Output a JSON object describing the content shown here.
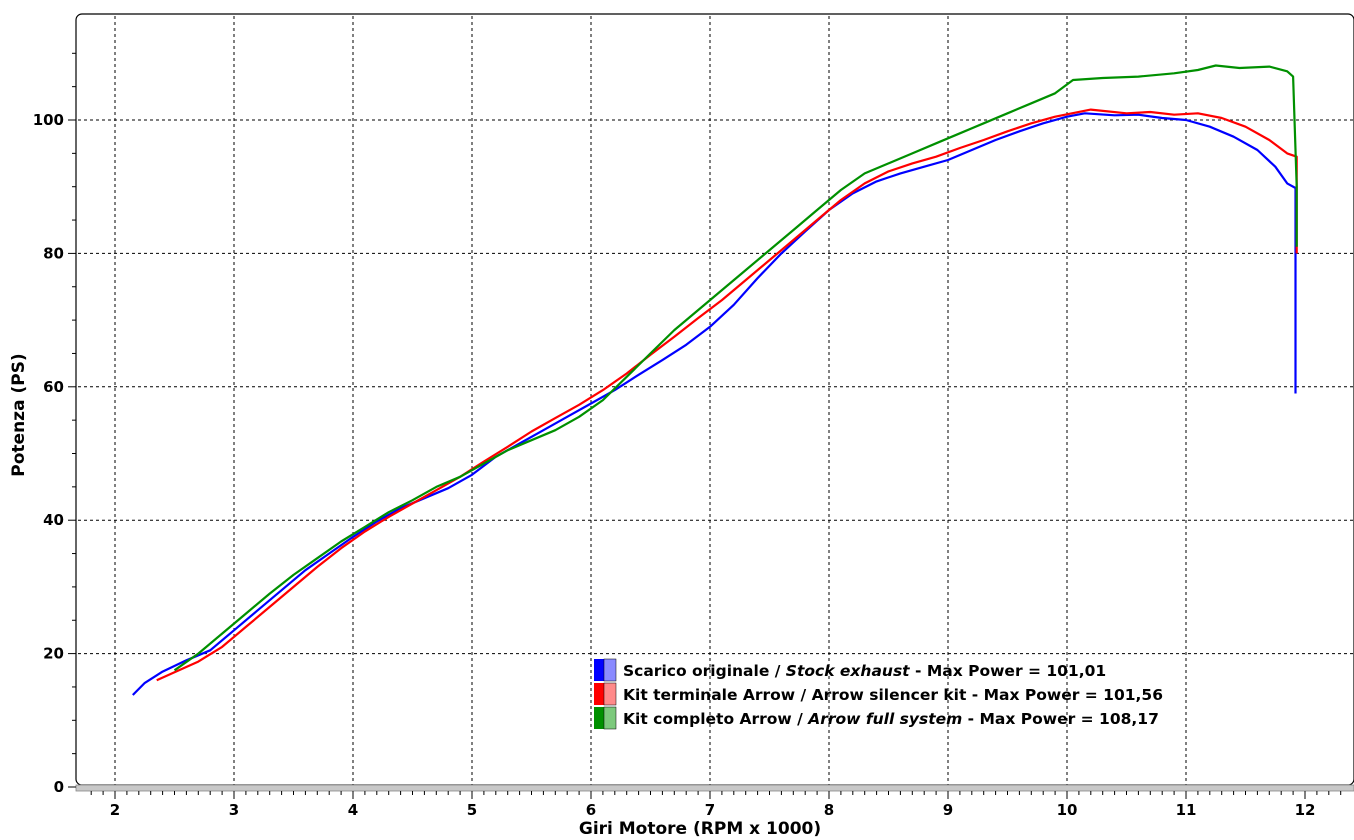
{
  "chart_data": {
    "type": "line",
    "xlabel": "Giri Motore (RPM x 1000)",
    "ylabel": "Potenza (PS)",
    "xlim": [
      1.7,
      12.3
    ],
    "ylim": [
      0,
      115
    ],
    "x_ticks": [
      2,
      3,
      4,
      5,
      6,
      7,
      8,
      9,
      10,
      11,
      12
    ],
    "y_ticks": [
      0,
      20,
      40,
      60,
      80,
      100
    ],
    "grid": true,
    "legend_position": "bottom-right",
    "series": [
      {
        "name_parts": [
          "Scarico originale / ",
          "Stock exhaust",
          " - Max Power = 101,01"
        ],
        "color": "#0000ff",
        "points": [
          [
            2.15,
            13.8
          ],
          [
            2.25,
            15.6
          ],
          [
            2.4,
            17.3
          ],
          [
            2.6,
            19.0
          ],
          [
            2.8,
            20.5
          ],
          [
            3.0,
            23.5
          ],
          [
            3.2,
            26.5
          ],
          [
            3.4,
            29.5
          ],
          [
            3.6,
            32.5
          ],
          [
            3.8,
            35.0
          ],
          [
            4.0,
            37.5
          ],
          [
            4.2,
            39.8
          ],
          [
            4.4,
            41.8
          ],
          [
            4.6,
            43.3
          ],
          [
            4.8,
            44.8
          ],
          [
            5.0,
            46.8
          ],
          [
            5.2,
            49.5
          ],
          [
            5.4,
            51.5
          ],
          [
            5.6,
            53.5
          ],
          [
            5.8,
            55.5
          ],
          [
            6.0,
            57.5
          ],
          [
            6.2,
            59.5
          ],
          [
            6.4,
            61.8
          ],
          [
            6.6,
            64.0
          ],
          [
            6.8,
            66.3
          ],
          [
            7.0,
            69.0
          ],
          [
            7.2,
            72.3
          ],
          [
            7.4,
            76.3
          ],
          [
            7.6,
            80.0
          ],
          [
            7.8,
            83.3
          ],
          [
            8.0,
            86.5
          ],
          [
            8.2,
            89.0
          ],
          [
            8.4,
            90.8
          ],
          [
            8.6,
            92.0
          ],
          [
            8.8,
            93.0
          ],
          [
            9.0,
            94.0
          ],
          [
            9.2,
            95.5
          ],
          [
            9.4,
            97.0
          ],
          [
            9.6,
            98.3
          ],
          [
            9.8,
            99.5
          ],
          [
            10.0,
            100.5
          ],
          [
            10.15,
            101.01
          ],
          [
            10.4,
            100.7
          ],
          [
            10.6,
            100.8
          ],
          [
            10.8,
            100.3
          ],
          [
            11.0,
            100.0
          ],
          [
            11.2,
            99.0
          ],
          [
            11.4,
            97.5
          ],
          [
            11.6,
            95.5
          ],
          [
            11.75,
            93.0
          ],
          [
            11.85,
            90.5
          ],
          [
            11.92,
            89.8
          ],
          [
            11.92,
            59.0
          ]
        ]
      },
      {
        "name_parts": [
          "Kit terminale Arrow / Arrow silencer kit - Max Power = 101,56"
        ],
        "color": "#ff0000",
        "points": [
          [
            2.35,
            16.0
          ],
          [
            2.5,
            17.2
          ],
          [
            2.7,
            18.8
          ],
          [
            2.9,
            21.0
          ],
          [
            3.1,
            24.0
          ],
          [
            3.3,
            27.0
          ],
          [
            3.5,
            30.0
          ],
          [
            3.7,
            33.0
          ],
          [
            3.9,
            35.8
          ],
          [
            4.1,
            38.3
          ],
          [
            4.3,
            40.5
          ],
          [
            4.5,
            42.5
          ],
          [
            4.7,
            44.5
          ],
          [
            4.9,
            46.5
          ],
          [
            5.1,
            48.8
          ],
          [
            5.3,
            51.0
          ],
          [
            5.5,
            53.3
          ],
          [
            5.7,
            55.3
          ],
          [
            5.9,
            57.3
          ],
          [
            6.1,
            59.5
          ],
          [
            6.3,
            62.0
          ],
          [
            6.5,
            64.8
          ],
          [
            6.7,
            67.5
          ],
          [
            6.9,
            70.3
          ],
          [
            7.1,
            73.0
          ],
          [
            7.3,
            76.0
          ],
          [
            7.5,
            79.0
          ],
          [
            7.7,
            82.0
          ],
          [
            7.9,
            85.0
          ],
          [
            8.1,
            88.0
          ],
          [
            8.3,
            90.5
          ],
          [
            8.5,
            92.3
          ],
          [
            8.7,
            93.5
          ],
          [
            8.9,
            94.5
          ],
          [
            9.1,
            95.8
          ],
          [
            9.3,
            97.0
          ],
          [
            9.5,
            98.3
          ],
          [
            9.7,
            99.5
          ],
          [
            9.9,
            100.5
          ],
          [
            10.2,
            101.56
          ],
          [
            10.5,
            101.0
          ],
          [
            10.7,
            101.2
          ],
          [
            10.9,
            100.8
          ],
          [
            11.1,
            101.0
          ],
          [
            11.3,
            100.3
          ],
          [
            11.5,
            99.0
          ],
          [
            11.7,
            97.0
          ],
          [
            11.85,
            95.0
          ],
          [
            11.93,
            94.5
          ],
          [
            11.93,
            80.0
          ]
        ]
      },
      {
        "name_parts": [
          "Kit completo Arrow / ",
          "Arrow full system",
          " - Max Power = 108,17"
        ],
        "color": "#009000",
        "points": [
          [
            2.5,
            17.5
          ],
          [
            2.7,
            20.0
          ],
          [
            2.9,
            23.0
          ],
          [
            3.1,
            26.0
          ],
          [
            3.3,
            29.0
          ],
          [
            3.5,
            31.8
          ],
          [
            3.7,
            34.3
          ],
          [
            3.9,
            36.8
          ],
          [
            4.1,
            39.0
          ],
          [
            4.3,
            41.2
          ],
          [
            4.5,
            43.0
          ],
          [
            4.7,
            45.0
          ],
          [
            4.9,
            46.5
          ],
          [
            5.1,
            48.5
          ],
          [
            5.3,
            50.5
          ],
          [
            5.5,
            52.0
          ],
          [
            5.7,
            53.5
          ],
          [
            5.9,
            55.5
          ],
          [
            6.1,
            58.0
          ],
          [
            6.3,
            61.5
          ],
          [
            6.5,
            65.0
          ],
          [
            6.7,
            68.5
          ],
          [
            6.9,
            71.5
          ],
          [
            7.1,
            74.5
          ],
          [
            7.3,
            77.5
          ],
          [
            7.5,
            80.5
          ],
          [
            7.7,
            83.5
          ],
          [
            7.9,
            86.5
          ],
          [
            8.1,
            89.5
          ],
          [
            8.3,
            92.0
          ],
          [
            8.5,
            93.5
          ],
          [
            8.7,
            95.0
          ],
          [
            8.9,
            96.5
          ],
          [
            9.1,
            98.0
          ],
          [
            9.3,
            99.5
          ],
          [
            9.5,
            101.0
          ],
          [
            9.7,
            102.5
          ],
          [
            9.9,
            104.0
          ],
          [
            10.05,
            106.0
          ],
          [
            10.3,
            106.3
          ],
          [
            10.6,
            106.5
          ],
          [
            10.9,
            107.0
          ],
          [
            11.1,
            107.5
          ],
          [
            11.25,
            108.17
          ],
          [
            11.45,
            107.8
          ],
          [
            11.7,
            108.0
          ],
          [
            11.85,
            107.3
          ],
          [
            11.9,
            106.5
          ],
          [
            11.93,
            90.0
          ],
          [
            11.93,
            81.0
          ]
        ]
      }
    ]
  }
}
